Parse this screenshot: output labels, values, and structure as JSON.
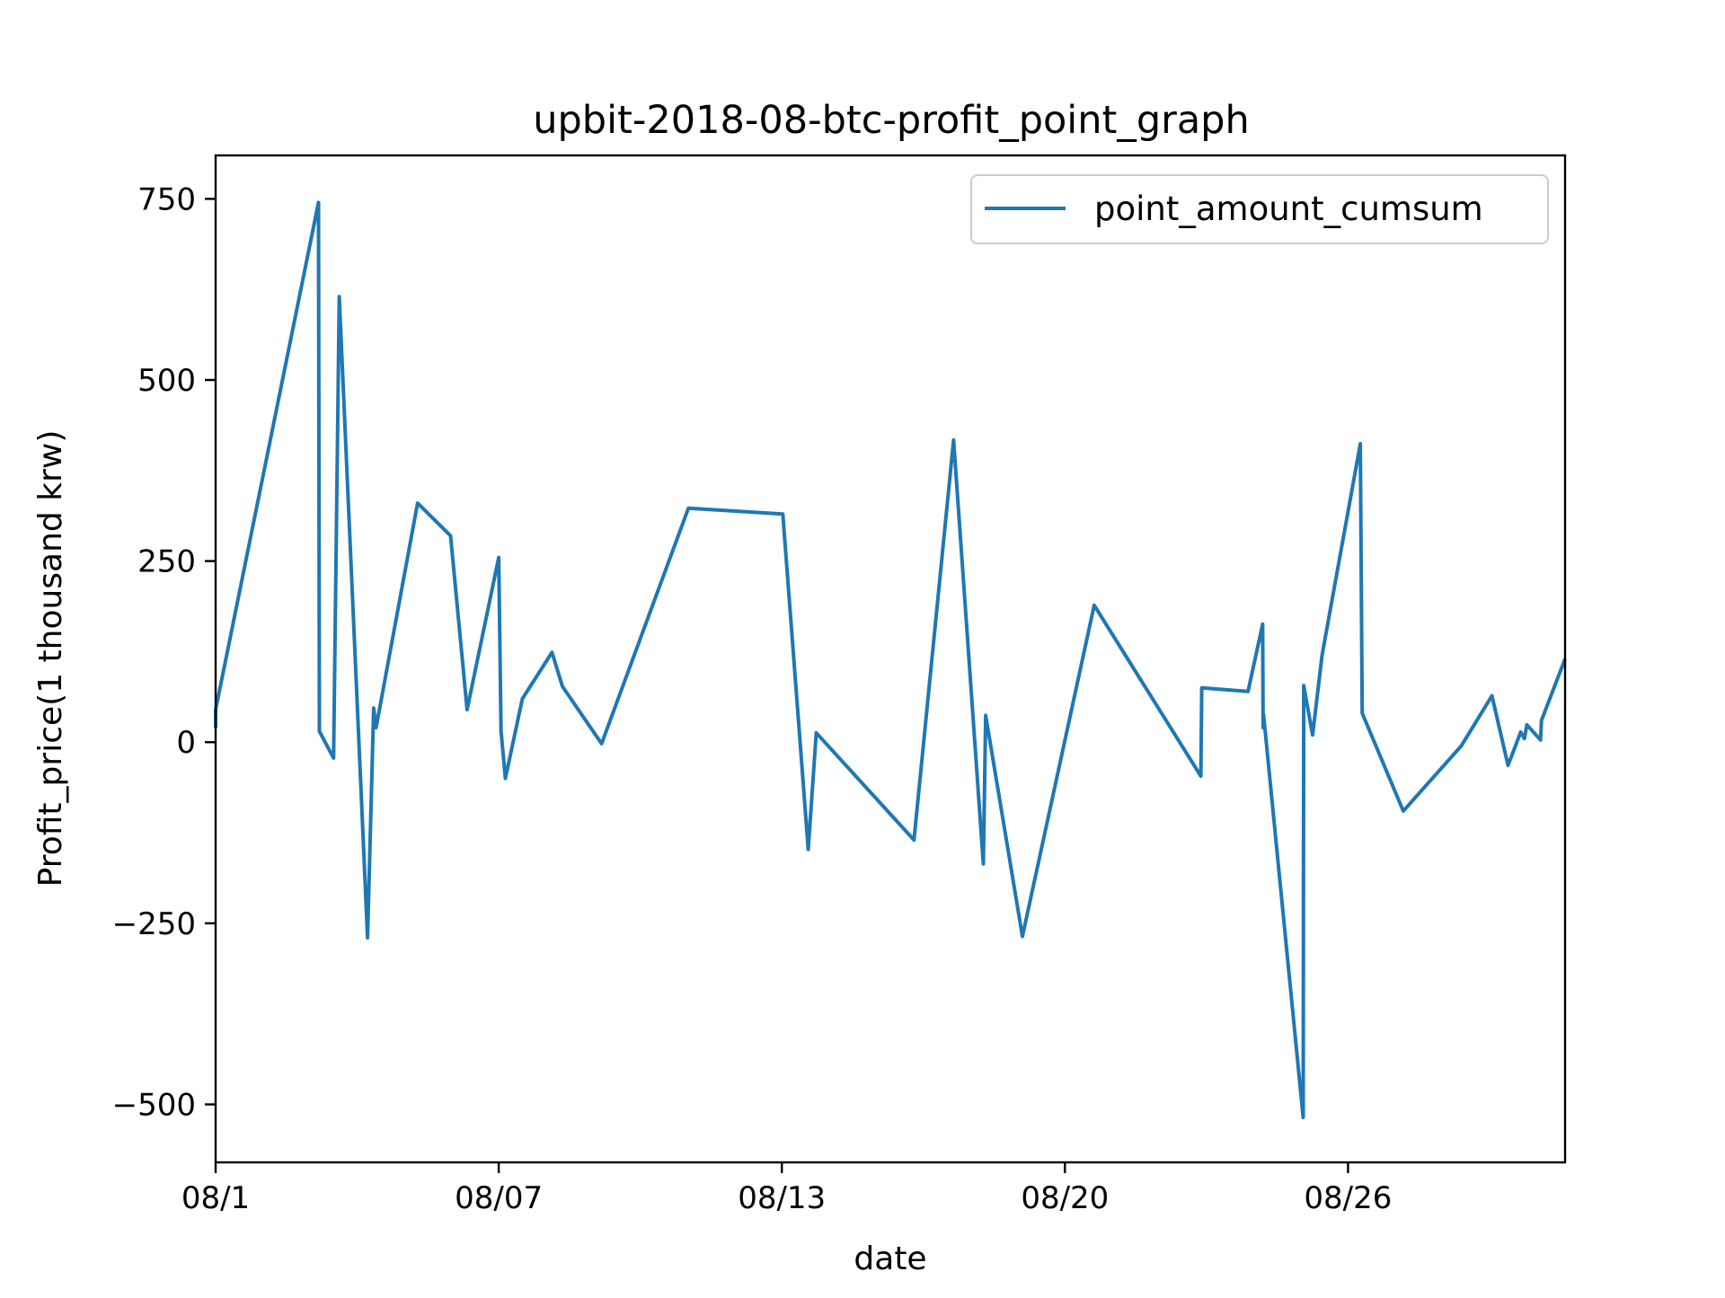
{
  "chart_data": {
    "type": "line",
    "title": "upbit-2018-08-btc-profit_point_graph",
    "xlabel": "date",
    "ylabel": "Profit_price(1 thousand krw)",
    "x_unit": "day of August 2018",
    "xlim": [
      1,
      29.6
    ],
    "ylim": [
      -580,
      810
    ],
    "x_ticks": [
      {
        "x": 1,
        "label": "08/1"
      },
      {
        "x": 7,
        "label": "08/07"
      },
      {
        "x": 13,
        "label": "08/13"
      },
      {
        "x": 19,
        "label": "08/20"
      },
      {
        "x": 25,
        "label": "08/26"
      }
    ],
    "y_ticks": [
      {
        "y": 750,
        "label": "750"
      },
      {
        "y": 500,
        "label": "500"
      },
      {
        "y": 250,
        "label": "250"
      },
      {
        "y": 0,
        "label": "0"
      },
      {
        "y": -250,
        "label": "−250"
      },
      {
        "y": -500,
        "label": "−500"
      }
    ],
    "grid": false,
    "legend_position": "upper-right",
    "series": [
      {
        "name": "point_amount_cumsum",
        "color": "#1f77b4",
        "points": [
          [
            1.0,
            20
          ],
          [
            1.0,
            45
          ],
          [
            3.18,
            745
          ],
          [
            3.2,
            15
          ],
          [
            3.5,
            -22
          ],
          [
            3.62,
            615
          ],
          [
            4.22,
            -270
          ],
          [
            4.35,
            47
          ],
          [
            4.4,
            20
          ],
          [
            5.28,
            330
          ],
          [
            5.98,
            285
          ],
          [
            6.33,
            45
          ],
          [
            7.0,
            255
          ],
          [
            7.05,
            15
          ],
          [
            7.14,
            -50
          ],
          [
            7.5,
            60
          ],
          [
            8.13,
            124
          ],
          [
            8.35,
            77
          ],
          [
            9.18,
            -2
          ],
          [
            11.02,
            323
          ],
          [
            13.02,
            315
          ],
          [
            13.56,
            -148
          ],
          [
            13.73,
            13
          ],
          [
            15.8,
            -135
          ],
          [
            16.64,
            417
          ],
          [
            17.27,
            -168
          ],
          [
            17.32,
            37
          ],
          [
            18.1,
            -268
          ],
          [
            19.62,
            189
          ],
          [
            21.88,
            -47
          ],
          [
            21.9,
            75
          ],
          [
            22.88,
            70
          ],
          [
            23.19,
            163
          ],
          [
            23.2,
            20
          ],
          [
            23.21,
            38
          ],
          [
            24.05,
            -518
          ],
          [
            24.06,
            78
          ],
          [
            24.25,
            10
          ],
          [
            24.45,
            120
          ],
          [
            25.26,
            412
          ],
          [
            25.3,
            40
          ],
          [
            26.17,
            -95
          ],
          [
            27.4,
            -5
          ],
          [
            28.05,
            64
          ],
          [
            28.39,
            -32
          ],
          [
            28.66,
            14
          ],
          [
            28.74,
            5
          ],
          [
            28.79,
            24
          ],
          [
            29.08,
            3
          ],
          [
            29.1,
            30
          ],
          [
            29.6,
            115
          ]
        ]
      }
    ]
  }
}
